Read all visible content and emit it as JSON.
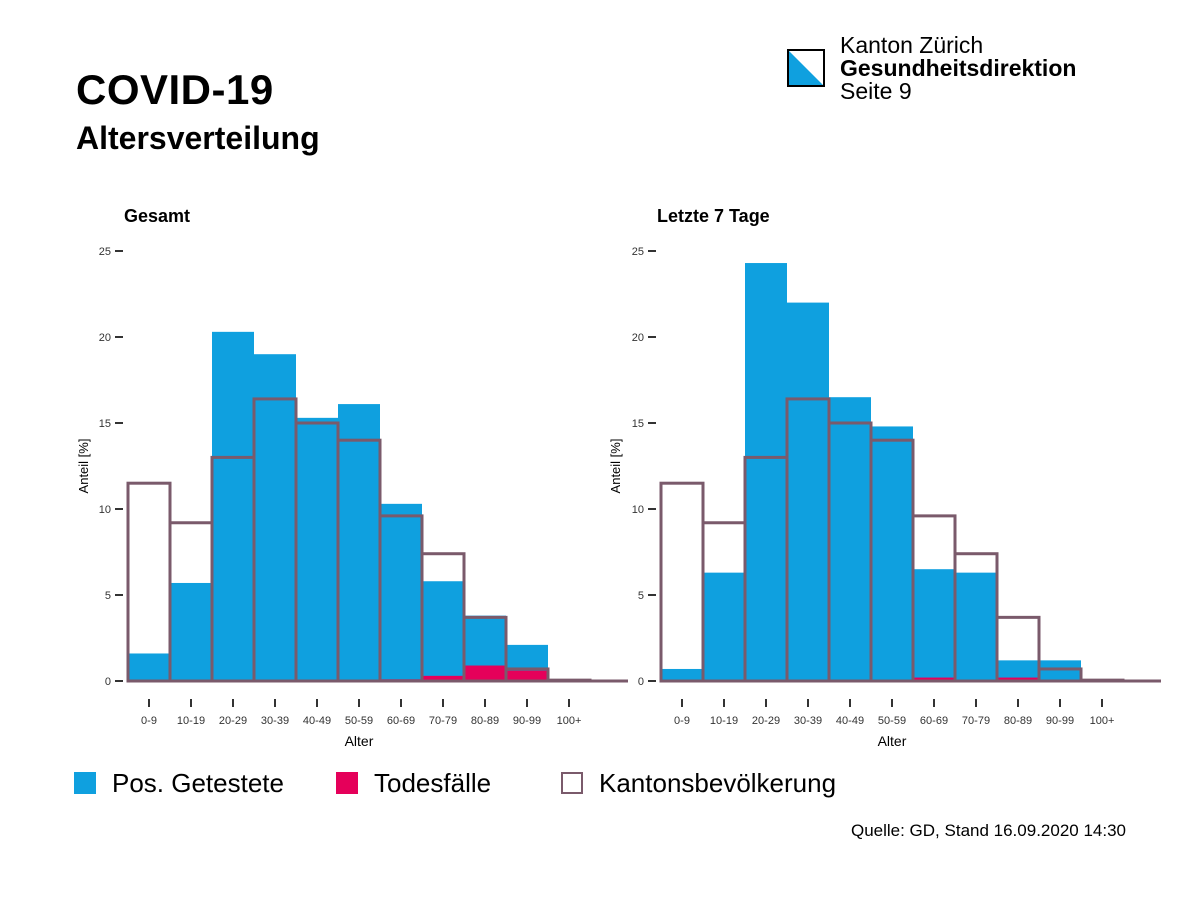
{
  "header": {
    "title": "COVID-19",
    "subtitle": "Altersverteilung",
    "org_line1": "Kanton Zürich",
    "org_line2": "Gesundheitsdirektion",
    "page": "Seite 9"
  },
  "colors": {
    "positive": "#0fa0df",
    "deaths": "#e5005a",
    "population_outline": "#7a5a6b",
    "logo_blue": "#0fa0df"
  },
  "legend": {
    "positive": "Pos. Getestete",
    "deaths": "Todesfälle",
    "population": "Kantonsbevölkerung"
  },
  "source": "Quelle: GD, Stand 16.09.2020 14:30",
  "chart_data": [
    {
      "type": "bar",
      "title": "Gesamt",
      "xlabel": "Alter",
      "ylabel": "Anteil [%]",
      "ylim": [
        0,
        25
      ],
      "yticks": [
        "0",
        "5",
        "10",
        "15",
        "20",
        "25"
      ],
      "categories": [
        "0-9",
        "10-19",
        "20-29",
        "30-39",
        "40-49",
        "50-59",
        "60-69",
        "70-79",
        "80-89",
        "90-99",
        "100+"
      ],
      "series": [
        {
          "name": "Pos. Getestete",
          "values": [
            1.6,
            5.7,
            20.3,
            19.0,
            15.3,
            16.1,
            10.3,
            5.8,
            3.8,
            2.1,
            0.0
          ]
        },
        {
          "name": "Todesfälle",
          "values": [
            0.0,
            0.0,
            0.0,
            0.0,
            0.0,
            0.0,
            0.1,
            0.3,
            0.9,
            0.6,
            0.0
          ]
        },
        {
          "name": "Kantonsbevölkerung",
          "values": [
            11.5,
            9.2,
            13.0,
            16.4,
            15.0,
            14.0,
            9.6,
            7.4,
            3.7,
            0.7,
            0.05
          ]
        }
      ]
    },
    {
      "type": "bar",
      "title": "Letzte 7 Tage",
      "xlabel": "Alter",
      "ylabel": "Anteil [%]",
      "ylim": [
        0,
        25
      ],
      "yticks": [
        "0",
        "5",
        "10",
        "15",
        "20",
        "25"
      ],
      "categories": [
        "0-9",
        "10-19",
        "20-29",
        "30-39",
        "40-49",
        "50-59",
        "60-69",
        "70-79",
        "80-89",
        "90-99",
        "100+"
      ],
      "series": [
        {
          "name": "Pos. Getestete",
          "values": [
            0.7,
            6.3,
            24.3,
            22.0,
            16.5,
            14.8,
            6.5,
            6.3,
            1.2,
            1.2,
            0.0
          ]
        },
        {
          "name": "Todesfälle",
          "values": [
            0.0,
            0.0,
            0.0,
            0.0,
            0.0,
            0.0,
            0.2,
            0.0,
            0.2,
            0.0,
            0.0
          ]
        },
        {
          "name": "Kantonsbevölkerung",
          "values": [
            11.5,
            9.2,
            13.0,
            16.4,
            15.0,
            14.0,
            9.6,
            7.4,
            3.7,
            0.7,
            0.05
          ]
        }
      ]
    }
  ]
}
